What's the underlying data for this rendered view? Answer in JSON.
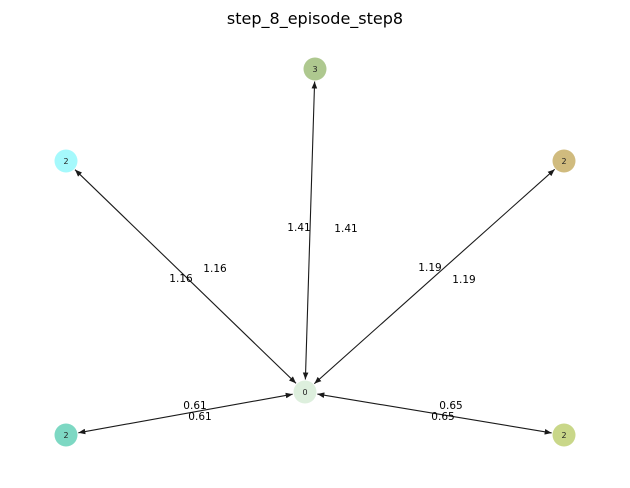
{
  "title": "step_8_episode_step8",
  "nodes": [
    {
      "id": "center",
      "label": "0",
      "color": "#d5ebd5"
    },
    {
      "id": "top",
      "label": "3",
      "color": "#9aba73"
    },
    {
      "id": "left",
      "label": "2",
      "color": "#8ff7fb"
    },
    {
      "id": "right",
      "label": "2",
      "color": "#c4aa5e"
    },
    {
      "id": "bottom-left",
      "label": "2",
      "color": "#5cceb4"
    },
    {
      "id": "bottom-right",
      "label": "2",
      "color": "#bccd6c"
    }
  ],
  "edges": [
    {
      "target": "top",
      "label_a": "1.41",
      "label_b": "1.41"
    },
    {
      "target": "left",
      "label_a": "1.16",
      "label_b": "1.16"
    },
    {
      "target": "right",
      "label_a": "1.19",
      "label_b": "1.19"
    },
    {
      "target": "bottom-left",
      "label_a": "0.61",
      "label_b": "0.61"
    },
    {
      "target": "bottom-right",
      "label_a": "0.65",
      "label_b": "0.65"
    }
  ]
}
